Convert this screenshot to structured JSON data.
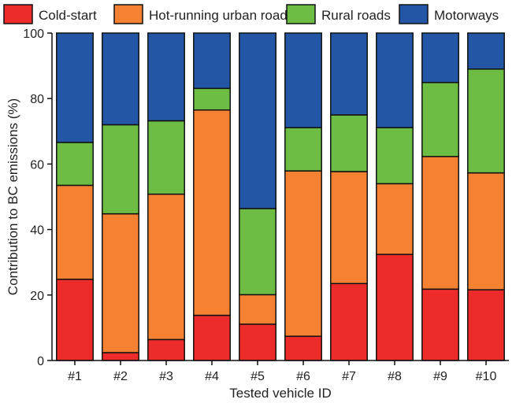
{
  "chart_data": {
    "type": "bar",
    "stacked": true,
    "categories": [
      "#1",
      "#2",
      "#3",
      "#4",
      "#5",
      "#6",
      "#7",
      "#8",
      "#9",
      "#10"
    ],
    "series": [
      {
        "name": "Cold-start",
        "color": "#ee2b2b",
        "values": [
          24.8,
          2.4,
          6.4,
          13.8,
          11.1,
          7.4,
          23.5,
          32.4,
          21.8,
          21.6
        ]
      },
      {
        "name": "Hot-running urban roads",
        "color": "#f58233",
        "values": [
          28.7,
          42.4,
          44.4,
          62.7,
          9.0,
          50.5,
          34.2,
          21.6,
          40.5,
          35.7
        ]
      },
      {
        "name": "Rural roads",
        "color": "#6dbd45",
        "values": [
          13.1,
          27.2,
          22.4,
          6.6,
          26.3,
          13.2,
          17.3,
          17.1,
          22.6,
          31.7
        ]
      },
      {
        "name": "Motorways",
        "color": "#2456a6",
        "values": [
          33.4,
          28.0,
          26.8,
          16.9,
          53.6,
          28.9,
          25.0,
          28.9,
          15.1,
          11.0
        ]
      }
    ],
    "xlabel": "Tested vehicle ID",
    "ylabel": "Contribution to BC emissions (%)",
    "ylim": [
      0,
      100
    ],
    "yticks": [
      "0",
      "20",
      "40",
      "60",
      "80",
      "100"
    ],
    "grid": false,
    "legend_position": "top"
  }
}
